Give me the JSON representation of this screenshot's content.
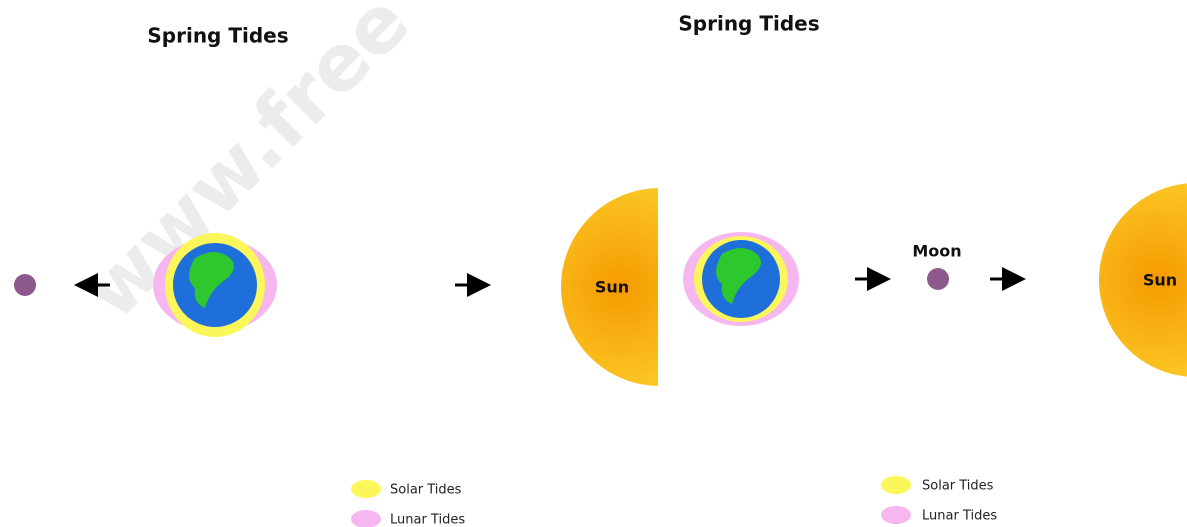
{
  "panels": [
    {
      "title": "Spring Tides",
      "sun_label": "Sun",
      "legend": [
        "Solar Tides",
        "Lunar Tides"
      ]
    },
    {
      "title": "Spring Tides",
      "sun_label": "Sun",
      "moon_label": "Moon",
      "legend": [
        "Solar Tides",
        "Lunar Tides"
      ]
    }
  ],
  "watermark": "www.free"
}
